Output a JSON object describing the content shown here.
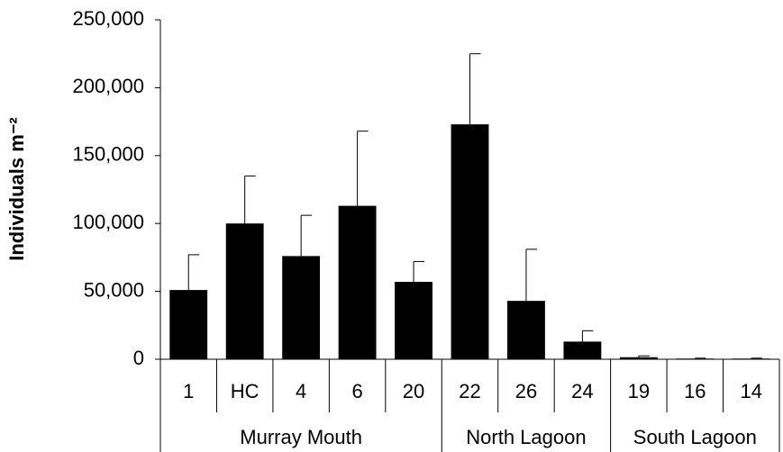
{
  "chart_data": {
    "type": "bar",
    "y_label": "Individuals m⁻²",
    "groups": [
      {
        "name": "Murray Mouth",
        "categories": [
          "1",
          "HC",
          "4",
          "6",
          "20"
        ]
      },
      {
        "name": "North Lagoon",
        "categories": [
          "22",
          "26",
          "24"
        ]
      },
      {
        "name": "South Lagoon",
        "categories": [
          "19",
          "16",
          "14"
        ]
      }
    ],
    "values": [
      51000,
      100000,
      76000,
      113000,
      57000,
      173000,
      43000,
      13000,
      1500,
      500,
      500
    ],
    "errors": [
      26000,
      35000,
      30000,
      55000,
      15000,
      52000,
      38000,
      8000,
      1000,
      300,
      300
    ],
    "color": "#000000",
    "ylim": [
      0,
      250000
    ],
    "yticks": [
      0,
      {
        "value": 50000,
        "label": "50,000"
      },
      {
        "value": 100000,
        "label": "100,000"
      },
      {
        "value": 150000,
        "label": "150,000"
      },
      {
        "value": 200000,
        "label": "200,000"
      },
      {
        "value": 250000,
        "label": "250,000"
      }
    ]
  }
}
